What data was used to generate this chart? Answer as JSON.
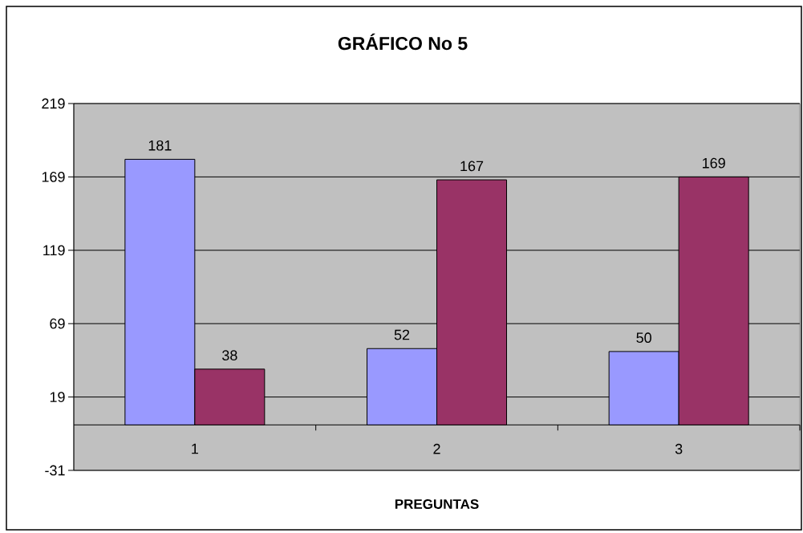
{
  "chart_data": {
    "type": "bar",
    "title": "GRÁFICO No 5",
    "xlabel": "PREGUNTAS",
    "categories": [
      "1",
      "2",
      "3"
    ],
    "series": [
      {
        "color": "#9999ff",
        "values": [
          181,
          52,
          50
        ]
      },
      {
        "color": "#993366",
        "values": [
          38,
          167,
          169
        ]
      }
    ],
    "ylim": [
      -31,
      219
    ],
    "yticks": [
      -31,
      19,
      69,
      119,
      169,
      219
    ],
    "grid": "y",
    "data_labels": true
  }
}
